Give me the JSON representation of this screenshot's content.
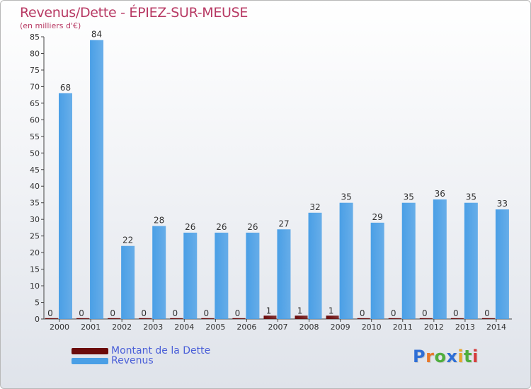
{
  "title": "Revenus/Dette - ÉPIEZ-SUR-MEUSE",
  "subtitle": "(en milliers d'€)",
  "logo": {
    "letters": [
      {
        "ch": "P",
        "color": "#2f6fd6"
      },
      {
        "ch": "r",
        "color": "#e8782a"
      },
      {
        "ch": "o",
        "color": "#4fae3e"
      },
      {
        "ch": "x",
        "color": "#2f6fd6"
      },
      {
        "ch": "i",
        "color": "#e8a52a"
      },
      {
        "ch": "t",
        "color": "#4fae3e"
      },
      {
        "ch": "i",
        "color": "#d63b3b"
      }
    ]
  },
  "legend": {
    "placement": "bottom-left",
    "items": [
      {
        "label": "Montant de la Dette",
        "color": "#6b0a0a"
      },
      {
        "label": "Revenus",
        "color": "#4a9fe6"
      }
    ]
  },
  "chart_data": {
    "type": "bar",
    "categories": [
      "2000",
      "2001",
      "2002",
      "2003",
      "2004",
      "2005",
      "2006",
      "2007",
      "2008",
      "2009",
      "2010",
      "2011",
      "2012",
      "2013",
      "2014"
    ],
    "series": [
      {
        "name": "Montant de la Dette",
        "color": "#6b0a0a",
        "values": [
          0,
          0,
          0,
          0,
          0,
          0,
          0,
          1,
          1,
          1,
          0,
          0,
          0,
          0,
          0
        ]
      },
      {
        "name": "Revenus",
        "color": "#4a9fe6",
        "values": [
          68,
          84,
          22,
          28,
          26,
          26,
          26,
          27,
          32,
          35,
          29,
          35,
          36,
          35,
          33
        ]
      }
    ],
    "ylim": [
      0,
      85
    ],
    "yticks": [
      0,
      5,
      10,
      15,
      20,
      25,
      30,
      35,
      40,
      45,
      50,
      55,
      60,
      65,
      70,
      75,
      80,
      85
    ],
    "grid": false
  }
}
